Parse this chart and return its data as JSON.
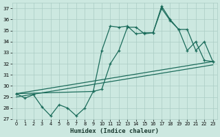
{
  "xlabel": "Humidex (Indice chaleur)",
  "xlim": [
    -0.5,
    23.5
  ],
  "ylim": [
    27,
    37.5
  ],
  "yticks": [
    27,
    28,
    29,
    30,
    31,
    32,
    33,
    34,
    35,
    36,
    37
  ],
  "xticks": [
    0,
    1,
    2,
    3,
    4,
    5,
    6,
    7,
    8,
    9,
    10,
    11,
    12,
    13,
    14,
    15,
    16,
    17,
    18,
    19,
    20,
    21,
    22,
    23
  ],
  "bg_color": "#cce8e0",
  "grid_color": "#aaccC4",
  "line_color": "#1a6b5a",
  "line1": {
    "x": [
      0,
      1,
      2,
      3,
      4,
      5,
      6,
      7,
      8,
      9,
      10,
      11,
      12,
      13,
      14,
      15,
      16,
      17,
      18,
      19,
      20,
      21,
      22,
      23
    ],
    "y": [
      29.3,
      28.9,
      29.2,
      28.1,
      27.3,
      28.3,
      28.0,
      27.3,
      28.0,
      29.5,
      29.7,
      32.0,
      33.2,
      35.3,
      35.3,
      34.7,
      34.8,
      37.2,
      36.0,
      35.1,
      33.2,
      34.0,
      32.3,
      32.2
    ]
  },
  "line2": {
    "x": [
      0,
      9,
      10,
      11,
      12,
      13,
      14,
      15,
      16,
      17,
      18,
      19,
      20,
      21,
      22,
      23
    ],
    "y": [
      29.3,
      29.5,
      33.2,
      35.4,
      35.3,
      35.4,
      34.7,
      34.8,
      34.8,
      37.0,
      35.9,
      35.1,
      35.1,
      33.2,
      34.0,
      32.2
    ]
  },
  "diag1": {
    "x": [
      0,
      23
    ],
    "y": [
      29.0,
      31.9
    ]
  },
  "diag2": {
    "x": [
      0,
      23
    ],
    "y": [
      29.3,
      32.2
    ]
  }
}
